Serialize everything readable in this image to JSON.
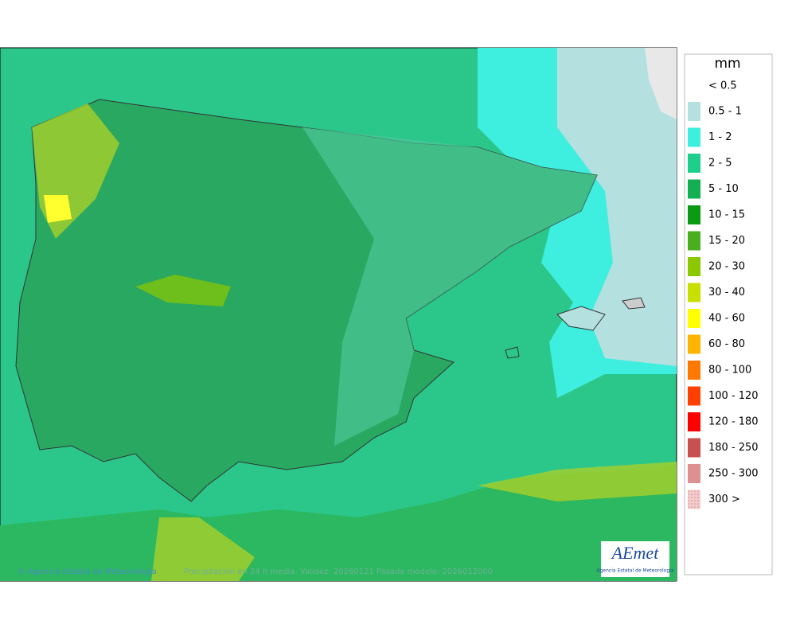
{
  "map": {
    "legend": {
      "title": "mm",
      "items": [
        {
          "label": "< 0.5",
          "color": null
        },
        {
          "label": "0.5 - 1",
          "color": "#b4e0e0"
        },
        {
          "label": "1 - 2",
          "color": "#3eeede"
        },
        {
          "label": "2 - 5",
          "color": "#1ecf8c"
        },
        {
          "label": "5 - 10",
          "color": "#12b052"
        },
        {
          "label": "10 - 15",
          "color": "#0a9a14"
        },
        {
          "label": "15 - 20",
          "color": "#4aae1e"
        },
        {
          "label": "20 - 30",
          "color": "#8cc800"
        },
        {
          "label": "30 - 40",
          "color": "#c8e000"
        },
        {
          "label": "40 - 60",
          "color": "#ffff00"
        },
        {
          "label": "60 - 80",
          "color": "#ffb400"
        },
        {
          "label": "80 - 100",
          "color": "#ff7800"
        },
        {
          "label": "100 - 120",
          "color": "#ff4000"
        },
        {
          "label": "120 - 180",
          "color": "#ff0000"
        },
        {
          "label": "180 - 250",
          "color": "#c85050"
        },
        {
          "label": "250 - 300",
          "color": "#dc9090"
        },
        {
          "label": "300 >",
          "color": "#f2cccc"
        }
      ]
    },
    "footer": {
      "credit": "© Agencia Estatal de Meteorología",
      "caption": "Precipitación en 24 h media. Validez: 20260121 Pasada modelo: 2026012000"
    },
    "logo": {
      "name": "AEmet",
      "subtitle": "Agencia Estatal de Meteorología"
    }
  }
}
